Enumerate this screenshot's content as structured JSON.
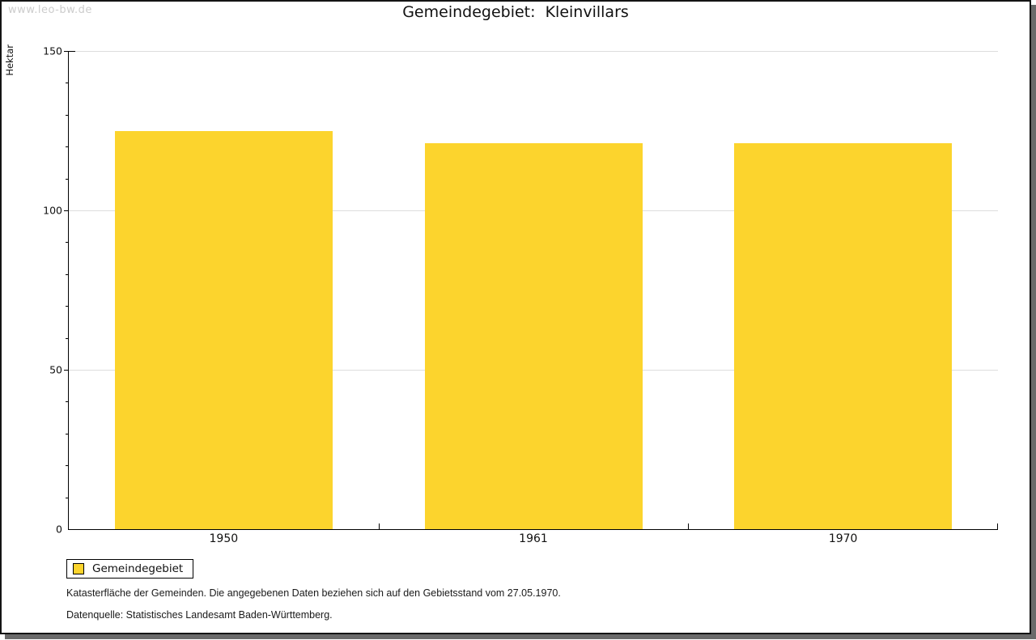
{
  "watermark": "www.leo-bw.de",
  "chart_data": {
    "type": "bar",
    "title": "Gemeindegebiet:  Kleinvillars",
    "ylabel": "Hektar",
    "xlabel": "",
    "categories": [
      "1950",
      "1961",
      "1970"
    ],
    "series": [
      {
        "name": "Gemeindegebiet",
        "values": [
          125,
          121,
          121
        ]
      }
    ],
    "ylim": [
      0,
      150
    ],
    "ytick_step": 50,
    "ytick_minor_step": 10,
    "grid": true,
    "legend_position": "bottom-left",
    "bar_color": "#fcd42d",
    "gridline_color": "#dddddd"
  },
  "legend": {
    "label": "Gemeindegebiet"
  },
  "footnotes": [
    "Katasterfläche der Gemeinden. Die angegebenen Daten beziehen sich auf den Gebietsstand vom 27.05.1970.",
    "Datenquelle: Statistisches Landesamt Baden-Württemberg."
  ]
}
